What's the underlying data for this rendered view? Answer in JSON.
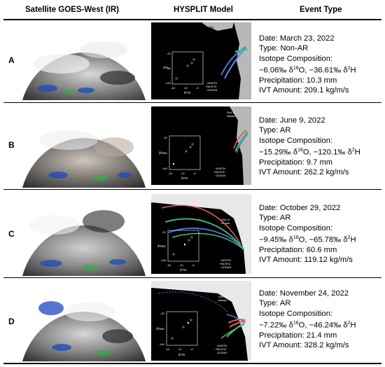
{
  "headers": {
    "satellite": "Satellite GOES-West (IR)",
    "model": "HYSPLIT Model",
    "event": "Event Type"
  },
  "map_labels": {
    "alaska": "Alaska",
    "gulf_line1": "Gulf of",
    "gulf_line2": "Alaska",
    "ocean_line1": "NORTH",
    "ocean_line2": "PACIFIC",
    "ocean_line3": "OCEAN",
    "inset_ylabel": "δ²H",
    "inset_xlabel": "δ¹⁸O",
    "inset_y_ticks": [
      "-20",
      "-80",
      "-140"
    ],
    "inset_x_ticks": [
      "-18",
      "-12",
      "-6"
    ]
  },
  "rows": [
    {
      "label": "A",
      "date": "Date: March 23, 2022",
      "type": "Type: Non-AR",
      "iso_title": "Isotope Composition:",
      "iso_o": "−6.06‰ δ",
      "iso_o_sup": "18",
      "iso_mid": "O, −36.61‰ δ",
      "iso_h_sup": "2",
      "iso_end": "H",
      "precip": "Precipitation: 10.3 mm",
      "ivt": "IVT Amount: 209.1 kg/m/s"
    },
    {
      "label": "B",
      "date": "Date: June 9, 2022",
      "type": "Type: AR",
      "iso_title": "Isotope Composition:",
      "iso_o": "−15.29‰ δ",
      "iso_o_sup": "18",
      "iso_mid": "O, −120.1‰ δ",
      "iso_h_sup": "2",
      "iso_end": "H",
      "precip": "Precipitation: 9.7 mm",
      "ivt": "IVT Amount: 262.2 kg/m/s"
    },
    {
      "label": "C",
      "date": "Date: October 29, 2022",
      "type": "Type: AR",
      "iso_title": "Isotope Composition:",
      "iso_o": "−9.45‰ δ",
      "iso_o_sup": "18",
      "iso_mid": "O, −65.78‰ δ",
      "iso_h_sup": "2",
      "iso_end": "H",
      "precip": "Precipitation: 60.6 mm",
      "ivt": "IVT Amount: 119.12 kg/m/s"
    },
    {
      "label": "D",
      "date": "Date: November 24, 2022",
      "type": "Type: AR",
      "iso_title": "Isotope Composition:",
      "iso_o": "−7.22‰ δ",
      "iso_o_sup": "18",
      "iso_mid": "O, −46.24‰ δ",
      "iso_h_sup": "2",
      "iso_end": "H",
      "precip": "Precipitation: 21.4 mm",
      "ivt": "IVT Amount: 328.2 kg/m/s"
    }
  ]
}
